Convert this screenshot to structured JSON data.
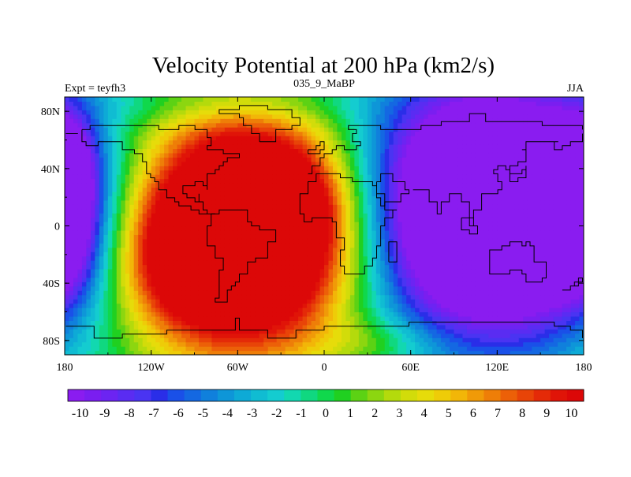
{
  "chart_data": {
    "type": "heatmap",
    "title": "Velocity Potential at 200 hPa (km2/s)",
    "left_label": "Expt = teyfh3",
    "center_label": "035_9_MaBP",
    "right_label": "JJA",
    "xticks": [
      {
        "value": -180,
        "label": "180"
      },
      {
        "value": -120,
        "label": "120W"
      },
      {
        "value": -60,
        "label": "60W"
      },
      {
        "value": 0,
        "label": "0"
      },
      {
        "value": 60,
        "label": "60E"
      },
      {
        "value": 120,
        "label": "120E"
      },
      {
        "value": 180,
        "label": "180"
      }
    ],
    "yticks": [
      {
        "value": 80,
        "label": "80N"
      },
      {
        "value": 40,
        "label": "40N"
      },
      {
        "value": 0,
        "label": "0"
      },
      {
        "value": -40,
        "label": "40S"
      },
      {
        "value": -80,
        "label": "80S"
      }
    ],
    "xlim": [
      -180,
      180
    ],
    "ylim": [
      -90,
      90
    ],
    "colorbar_ticks": [
      "-10",
      "-9",
      "-8",
      "-7",
      "-6",
      "-5",
      "-4",
      "-3",
      "-2",
      "-1",
      "0",
      "1",
      "2",
      "3",
      "4",
      "5",
      "6",
      "7",
      "8",
      "9",
      "10"
    ],
    "colorbar_range": [
      -10.5,
      10.5
    ],
    "colorbar_colors": [
      "#8a1cf0",
      "#7a1ef0",
      "#6c24f2",
      "#5a2cf2",
      "#4a34f2",
      "#2a2ee8",
      "#1a50e8",
      "#1468e2",
      "#1080dc",
      "#0e96d8",
      "#0eaad6",
      "#10bcd2",
      "#14ccd0",
      "#12d8b0",
      "#10d880",
      "#10d84c",
      "#20d020",
      "#5cd214",
      "#8cd610",
      "#b4da0c",
      "#d2dc0a",
      "#e6dc0a",
      "#eecc08",
      "#f2b608",
      "#f09a08",
      "#ee7e08",
      "#ec6008",
      "#e84408",
      "#e42a08",
      "#e01408",
      "#dc0808"
    ],
    "field_blobs": [
      {
        "lon": -55,
        "lat": -5,
        "amp": 22,
        "slon": 55,
        "slat": 55
      },
      {
        "lon": -100,
        "lat": -25,
        "amp": 4,
        "slon": 30,
        "slat": 30
      },
      {
        "lon": -30,
        "lat": 15,
        "amp": 4,
        "slon": 30,
        "slat": 25
      },
      {
        "lon": 115,
        "lat": 12,
        "amp": -22,
        "slon": 62,
        "slat": 62
      },
      {
        "lon": 165,
        "lat": 0,
        "amp": -3,
        "slon": 28,
        "slat": 35
      },
      {
        "lon": -180,
        "lat": 35,
        "amp": -8,
        "slon": 15,
        "slat": 30
      },
      {
        "lon": -180,
        "lat": -20,
        "amp": -3,
        "slon": 15,
        "slat": 25
      },
      {
        "lon": 40,
        "lat": -80,
        "amp": 2,
        "slon": 30,
        "slat": 12
      },
      {
        "lon": -60,
        "lat": 85,
        "amp": -2,
        "slon": 60,
        "slat": 10
      }
    ],
    "coastlines": [
      [
        [
          -168,
          66
        ],
        [
          -162,
          70
        ],
        [
          -156,
          71
        ],
        [
          -140,
          70
        ],
        [
          -128,
          70
        ],
        [
          -115,
          68
        ],
        [
          -100,
          69
        ],
        [
          -90,
          68
        ],
        [
          -82,
          66
        ],
        [
          -80,
          62
        ],
        [
          -78,
          57
        ],
        [
          -80,
          52
        ],
        [
          -70,
          50
        ],
        [
          -64,
          49
        ],
        [
          -60,
          47
        ],
        [
          -66,
          44
        ],
        [
          -70,
          42
        ],
        [
          -74,
          40
        ],
        [
          -76,
          36
        ],
        [
          -81,
          31
        ],
        [
          -80,
          26
        ],
        [
          -82,
          28
        ],
        [
          -85,
          30
        ],
        [
          -90,
          29
        ],
        [
          -97,
          27
        ],
        [
          -98,
          22
        ],
        [
          -96,
          19
        ],
        [
          -91,
          18
        ],
        [
          -88,
          21
        ],
        [
          -87,
          16
        ],
        [
          -83,
          10
        ],
        [
          -80,
          8
        ],
        [
          -77,
          8
        ],
        [
          -82,
          8
        ],
        [
          -86,
          12
        ],
        [
          -92,
          15
        ],
        [
          -100,
          17
        ],
        [
          -105,
          20
        ],
        [
          -110,
          24
        ],
        [
          -114,
          30
        ],
        [
          -117,
          33
        ],
        [
          -121,
          36
        ],
        [
          -124,
          40
        ],
        [
          -124,
          46
        ],
        [
          -126,
          50
        ],
        [
          -132,
          54
        ],
        [
          -140,
          60
        ],
        [
          -150,
          60
        ],
        [
          -158,
          57
        ],
        [
          -165,
          60
        ],
        [
          -168,
          66
        ]
      ],
      [
        [
          -78,
          8
        ],
        [
          -72,
          12
        ],
        [
          -62,
          10
        ],
        [
          -52,
          4
        ],
        [
          -50,
          0
        ],
        [
          -44,
          -3
        ],
        [
          -35,
          -6
        ],
        [
          -35,
          -10
        ],
        [
          -39,
          -16
        ],
        [
          -40,
          -22
        ],
        [
          -48,
          -26
        ],
        [
          -53,
          -33
        ],
        [
          -58,
          -38
        ],
        [
          -62,
          -41
        ],
        [
          -65,
          -46
        ],
        [
          -68,
          -52
        ],
        [
          -72,
          -54
        ],
        [
          -75,
          -50
        ],
        [
          -74,
          -42
        ],
        [
          -72,
          -32
        ],
        [
          -71,
          -22
        ],
        [
          -76,
          -14
        ],
        [
          -81,
          -5
        ],
        [
          -80,
          0
        ],
        [
          -78,
          8
        ]
      ],
      [
        [
          -44,
          60
        ],
        [
          -34,
          67
        ],
        [
          -22,
          70
        ],
        [
          -18,
          76
        ],
        [
          -22,
          82
        ],
        [
          -40,
          83
        ],
        [
          -60,
          82
        ],
        [
          -72,
          78
        ],
        [
          -60,
          75
        ],
        [
          -55,
          70
        ],
        [
          -50,
          64
        ],
        [
          -44,
          60
        ]
      ],
      [
        [
          -10,
          36
        ],
        [
          -9,
          43
        ],
        [
          -2,
          44
        ],
        [
          -4,
          48
        ],
        [
          0,
          50
        ],
        [
          6,
          54
        ],
        [
          8,
          57
        ],
        [
          12,
          56
        ],
        [
          14,
          54
        ],
        [
          22,
          56
        ],
        [
          24,
          60
        ],
        [
          20,
          63
        ],
        [
          22,
          66
        ],
        [
          18,
          70
        ],
        [
          28,
          71
        ],
        [
          40,
          68
        ],
        [
          44,
          66
        ],
        [
          54,
          68
        ],
        [
          68,
          70
        ],
        [
          80,
          73
        ],
        [
          100,
          77
        ],
        [
          112,
          74
        ],
        [
          130,
          72
        ],
        [
          140,
          72
        ],
        [
          150,
          71
        ],
        [
          160,
          70
        ],
        [
          170,
          69
        ],
        [
          180,
          68
        ]
      ],
      [
        [
          -17,
          15
        ],
        [
          -17,
          21
        ],
        [
          -10,
          30
        ],
        [
          -6,
          36
        ],
        [
          10,
          37
        ],
        [
          11,
          33
        ],
        [
          20,
          31
        ],
        [
          30,
          31
        ],
        [
          34,
          28
        ],
        [
          37,
          21
        ],
        [
          43,
          12
        ],
        [
          51,
          11
        ],
        [
          47,
          5
        ],
        [
          42,
          -1
        ],
        [
          40,
          -8
        ],
        [
          40,
          -15
        ],
        [
          35,
          -22
        ],
        [
          33,
          -27
        ],
        [
          27,
          -34
        ],
        [
          18,
          -34
        ],
        [
          15,
          -27
        ],
        [
          12,
          -16
        ],
        [
          13,
          -9
        ],
        [
          9,
          -2
        ],
        [
          8,
          4
        ],
        [
          5,
          5
        ],
        [
          -4,
          5
        ],
        [
          -8,
          4
        ],
        [
          -13,
          8
        ],
        [
          -17,
          15
        ]
      ],
      [
        [
          44,
          -25
        ],
        [
          48,
          -25
        ],
        [
          50,
          -15
        ],
        [
          49,
          -12
        ],
        [
          44,
          -16
        ],
        [
          44,
          -25
        ]
      ],
      [
        [
          35,
          31
        ],
        [
          40,
          36
        ],
        [
          48,
          30
        ],
        [
          50,
          30
        ],
        [
          56,
          26
        ],
        [
          59,
          22
        ],
        [
          52,
          16
        ],
        [
          43,
          13
        ],
        [
          38,
          20
        ],
        [
          35,
          31
        ]
      ],
      [
        [
          62,
          25
        ],
        [
          67,
          24
        ],
        [
          72,
          21
        ],
        [
          73,
          16
        ],
        [
          77,
          8
        ],
        [
          80,
          12
        ],
        [
          80,
          16
        ],
        [
          88,
          22
        ],
        [
          92,
          22
        ],
        [
          94,
          16
        ],
        [
          98,
          16
        ],
        [
          100,
          13
        ],
        [
          100,
          6
        ],
        [
          104,
          1
        ],
        [
          103,
          10
        ],
        [
          106,
          10
        ],
        [
          109,
          12
        ],
        [
          108,
          18
        ],
        [
          110,
          21
        ],
        [
          116,
          23
        ],
        [
          120,
          26
        ],
        [
          122,
          31
        ],
        [
          121,
          37
        ],
        [
          118,
          39
        ],
        [
          121,
          41
        ],
        [
          126,
          38
        ],
        [
          129,
          35
        ],
        [
          129,
          40
        ],
        [
          130,
          43
        ],
        [
          135,
          44
        ],
        [
          140,
          48
        ],
        [
          141,
          53
        ],
        [
          136,
          54
        ],
        [
          140,
          60
        ],
        [
          150,
          59
        ],
        [
          155,
          60
        ],
        [
          163,
          60
        ],
        [
          160,
          52
        ],
        [
          164,
          57
        ],
        [
          170,
          60
        ],
        [
          178,
          62
        ],
        [
          180,
          65
        ]
      ],
      [
        [
          114,
          -22
        ],
        [
          114,
          -26
        ],
        [
          116,
          -34
        ],
        [
          124,
          -34
        ],
        [
          130,
          -32
        ],
        [
          136,
          -35
        ],
        [
          138,
          -35
        ],
        [
          141,
          -38
        ],
        [
          146,
          -39
        ],
        [
          150,
          -37
        ],
        [
          153,
          -32
        ],
        [
          153,
          -25
        ],
        [
          145,
          -14
        ],
        [
          142,
          -11
        ],
        [
          141,
          -14
        ],
        [
          136,
          -12
        ],
        [
          132,
          -11
        ],
        [
          128,
          -15
        ],
        [
          122,
          -18
        ],
        [
          114,
          -22
        ]
      ],
      [
        [
          166,
          -46
        ],
        [
          172,
          -41
        ],
        [
          175,
          -37
        ],
        [
          178,
          -38
        ],
        [
          174,
          -41
        ],
        [
          170,
          -46
        ],
        [
          166,
          -46
        ]
      ],
      [
        [
          130,
          31
        ],
        [
          135,
          34
        ],
        [
          140,
          36
        ],
        [
          141,
          41
        ],
        [
          140,
          38
        ],
        [
          136,
          35
        ],
        [
          130,
          31
        ]
      ],
      [
        [
          95,
          5
        ],
        [
          100,
          0
        ],
        [
          105,
          -6
        ],
        [
          102,
          -4
        ],
        [
          95,
          5
        ]
      ],
      [
        [
          -180,
          -70
        ],
        [
          -160,
          -78
        ],
        [
          -140,
          -75
        ],
        [
          -110,
          -74
        ],
        [
          -80,
          -72
        ],
        [
          -62,
          -64
        ],
        [
          -58,
          -66
        ],
        [
          -60,
          -74
        ],
        [
          -40,
          -78
        ],
        [
          -20,
          -74
        ],
        [
          0,
          -70
        ],
        [
          20,
          -70
        ],
        [
          40,
          -69
        ],
        [
          60,
          -67
        ],
        [
          80,
          -66
        ],
        [
          100,
          -66
        ],
        [
          120,
          -66
        ],
        [
          140,
          -67
        ],
        [
          160,
          -70
        ],
        [
          170,
          -72
        ],
        [
          180,
          -78
        ]
      ],
      [
        [
          -180,
          65
        ],
        [
          -172,
          65
        ]
      ],
      [
        [
          -10,
          52
        ],
        [
          -6,
          55
        ],
        [
          -3,
          58
        ],
        [
          0,
          53
        ],
        [
          -4,
          50
        ],
        [
          -10,
          52
        ]
      ]
    ]
  }
}
